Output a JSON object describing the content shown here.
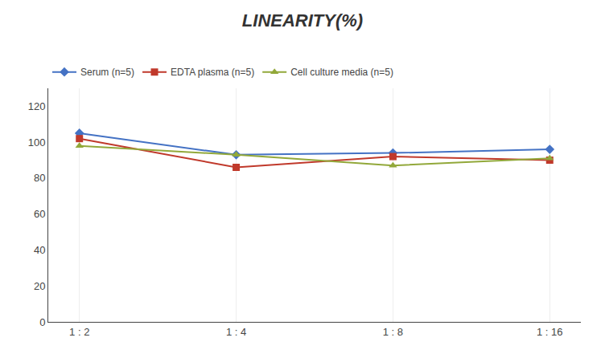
{
  "chart_data": {
    "type": "line",
    "title": "LINEARITY(%)",
    "categories": [
      "1 : 2",
      "1 : 4",
      "1 : 8",
      "1 : 16"
    ],
    "series": [
      {
        "name": "Serum (n=5)",
        "color": "#4472C4",
        "marker": "diamond",
        "line_style": "solid",
        "values": [
          105,
          93,
          94,
          96
        ]
      },
      {
        "name": "EDTA plasma (n=5)",
        "color": "#C0392B",
        "marker": "square",
        "line_style": "solid",
        "values": [
          102,
          86,
          92,
          90
        ]
      },
      {
        "name": "Cell culture media (n=5)",
        "color": "#92A83A",
        "marker": "triangle-up",
        "line_style": "solid",
        "values": [
          98,
          93,
          87,
          91
        ]
      }
    ],
    "ylim": [
      0,
      130
    ],
    "yticks": [
      0,
      20,
      40,
      60,
      80,
      100,
      120
    ],
    "grid": "x",
    "legend": "top"
  }
}
